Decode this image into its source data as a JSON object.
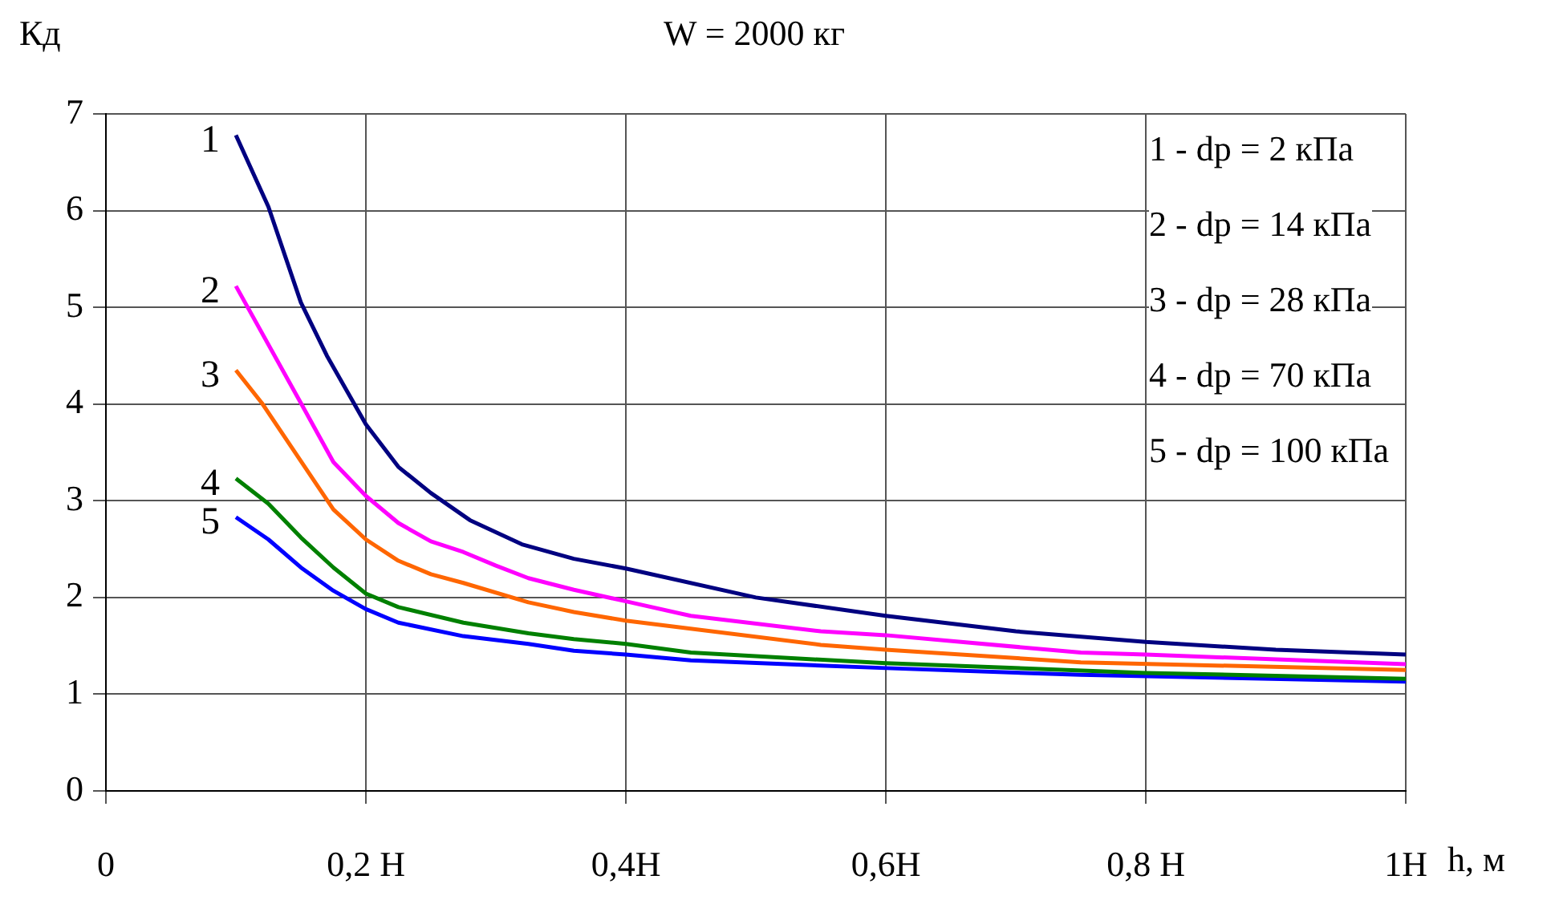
{
  "chart_data": {
    "type": "line",
    "title": "W = 2000 кг",
    "xlabel": "h, м",
    "ylabel": "Кд",
    "xlim": [
      0,
      1
    ],
    "xticks": [
      0,
      {
        "value": 0.2,
        "label": "0,2 H"
      },
      {
        "value": 0.4,
        "label": "0,4H"
      },
      {
        "value": 0.6,
        "label": "0,6H"
      },
      {
        "value": 0.8,
        "label": "0,8 H"
      },
      {
        "value": 1,
        "label": "1H"
      }
    ],
    "ylim": [
      0,
      7
    ],
    "yticks": [
      0,
      1,
      2,
      3,
      4,
      5,
      6,
      7
    ],
    "grid": true,
    "legend": false,
    "marker": "none",
    "line_style": "solid",
    "annotations": [
      "1 - dp = 2 кПа",
      "2 - dp = 14 кПа",
      "3 - dp = 28 кПа",
      "4 - dp = 70 кПа",
      "5 - dp = 100 кПа"
    ],
    "series": [
      {
        "name": "1",
        "color": "#000080",
        "x": [
          0.1,
          0.125,
          0.15,
          0.17,
          0.2,
          0.225,
          0.25,
          0.28,
          0.32,
          0.36,
          0.4,
          0.5,
          0.6,
          0.7,
          0.8,
          0.9,
          1.0
        ],
        "values": [
          6.78,
          6.04,
          5.05,
          4.5,
          3.79,
          3.35,
          3.08,
          2.8,
          2.55,
          2.4,
          2.3,
          2.0,
          1.81,
          1.65,
          1.54,
          1.46,
          1.41
        ]
      },
      {
        "name": "2",
        "color": "#ff00ff",
        "x": [
          0.1,
          0.15,
          0.175,
          0.2,
          0.225,
          0.25,
          0.275,
          0.3,
          0.325,
          0.36,
          0.4,
          0.45,
          0.55,
          0.6,
          0.75,
          0.8,
          1.0
        ],
        "values": [
          5.22,
          4.01,
          3.4,
          3.05,
          2.77,
          2.58,
          2.47,
          2.33,
          2.2,
          2.08,
          1.96,
          1.81,
          1.65,
          1.61,
          1.43,
          1.41,
          1.31
        ]
      },
      {
        "name": "3",
        "color": "#ff6600",
        "x": [
          0.1,
          0.12,
          0.15,
          0.175,
          0.2,
          0.225,
          0.25,
          0.275,
          0.325,
          0.36,
          0.4,
          0.55,
          0.6,
          0.75,
          1.0
        ],
        "values": [
          4.35,
          4.01,
          3.41,
          2.91,
          2.6,
          2.38,
          2.24,
          2.15,
          1.95,
          1.85,
          1.76,
          1.51,
          1.46,
          1.33,
          1.25
        ]
      },
      {
        "name": "4",
        "color": "#008000",
        "x": [
          0.1,
          0.125,
          0.15,
          0.175,
          0.2,
          0.225,
          0.275,
          0.325,
          0.36,
          0.4,
          0.45,
          0.6,
          0.8,
          1.0
        ],
        "values": [
          3.23,
          2.97,
          2.62,
          2.31,
          2.04,
          1.9,
          1.74,
          1.63,
          1.57,
          1.52,
          1.43,
          1.32,
          1.22,
          1.16
        ]
      },
      {
        "name": "5",
        "color": "#0000ff",
        "x": [
          0.1,
          0.125,
          0.15,
          0.175,
          0.2,
          0.225,
          0.275,
          0.325,
          0.36,
          0.4,
          0.45,
          0.6,
          0.75,
          1.0
        ],
        "values": [
          2.83,
          2.6,
          2.31,
          2.07,
          1.88,
          1.74,
          1.6,
          1.52,
          1.45,
          1.41,
          1.35,
          1.27,
          1.2,
          1.13
        ]
      }
    ]
  }
}
